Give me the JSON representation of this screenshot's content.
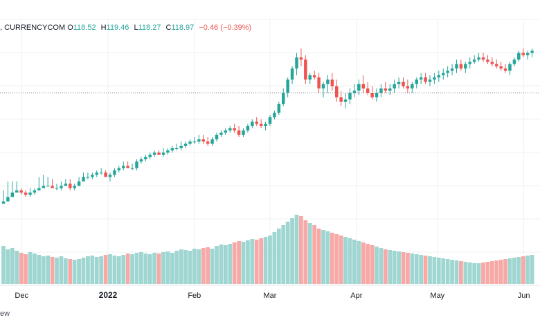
{
  "legend": {
    "symbol": ", CURRENCYCOM",
    "open_label": "O",
    "open": "118.52",
    "high_label": "H",
    "high": "119.46",
    "low_label": "L",
    "low": "118.27",
    "close_label": "C",
    "close": "118.97",
    "change": "−0.46 (−0.39%)"
  },
  "footer": {
    "text": "ew"
  },
  "colors": {
    "up": "#26a69a",
    "down": "#ef5350",
    "up_volume": "#9fd6d1",
    "down_volume": "#f7a9a7",
    "grid": "#eef0f3",
    "axis_text": "#131722",
    "price_line": "#8a8e99"
  },
  "chart_data": {
    "type": "candlestick",
    "x_ticks": [
      "Dec",
      "2022",
      "Feb",
      "Mar",
      "Apr",
      "May",
      "Jun"
    ],
    "y_range": [
      0,
      100
    ],
    "price_line_value": 80,
    "candles": [
      [
        30,
        30,
        36,
        31
      ],
      [
        31,
        31,
        40,
        33
      ],
      [
        33,
        35,
        40,
        35
      ],
      [
        35,
        35,
        40,
        36
      ],
      [
        36,
        34,
        37,
        35
      ],
      [
        35,
        33,
        36,
        34
      ],
      [
        34,
        33,
        37,
        35
      ],
      [
        35,
        34,
        37,
        36
      ],
      [
        36,
        36,
        42,
        37
      ],
      [
        37,
        37,
        43,
        38
      ],
      [
        38,
        38,
        42,
        38
      ],
      [
        38,
        38,
        41,
        37
      ],
      [
        37,
        36,
        39,
        37
      ],
      [
        37,
        36,
        40,
        38
      ],
      [
        38,
        38,
        41,
        39
      ],
      [
        39,
        36,
        41,
        37
      ],
      [
        37,
        36,
        39,
        38
      ],
      [
        38,
        38,
        42,
        40
      ],
      [
        40,
        40,
        44,
        42
      ],
      [
        42,
        41,
        44,
        42
      ],
      [
        42,
        41,
        44,
        43
      ],
      [
        43,
        42,
        45,
        44
      ],
      [
        44,
        43,
        46,
        44
      ],
      [
        44,
        43,
        45,
        42
      ],
      [
        42,
        40,
        44,
        43
      ],
      [
        43,
        42,
        46,
        45
      ],
      [
        45,
        44,
        47,
        46
      ],
      [
        46,
        45,
        49,
        47
      ],
      [
        47,
        46,
        49,
        46
      ],
      [
        46,
        45,
        48,
        46
      ],
      [
        46,
        45,
        50,
        49
      ],
      [
        49,
        48,
        51,
        50
      ],
      [
        50,
        49,
        52,
        51
      ],
      [
        51,
        50,
        53,
        52
      ],
      [
        52,
        51,
        54,
        53
      ],
      [
        53,
        52,
        54,
        52
      ],
      [
        52,
        51,
        55,
        53
      ],
      [
        53,
        52,
        55,
        54
      ],
      [
        54,
        53,
        56,
        55
      ],
      [
        55,
        54,
        57,
        55
      ],
      [
        55,
        54,
        58,
        56
      ],
      [
        56,
        55,
        58,
        57
      ],
      [
        57,
        56,
        59,
        58
      ],
      [
        58,
        57,
        60,
        58
      ],
      [
        58,
        57,
        61,
        59
      ],
      [
        59,
        57,
        61,
        58
      ],
      [
        58,
        56,
        60,
        57
      ],
      [
        57,
        56,
        60,
        59
      ],
      [
        59,
        58,
        62,
        61
      ],
      [
        61,
        60,
        63,
        62
      ],
      [
        62,
        61,
        64,
        63
      ],
      [
        63,
        62,
        65,
        64
      ],
      [
        64,
        62,
        66,
        63
      ],
      [
        63,
        60,
        65,
        61
      ],
      [
        61,
        60,
        64,
        63
      ],
      [
        63,
        62,
        66,
        65
      ],
      [
        65,
        64,
        68,
        67
      ],
      [
        67,
        65,
        69,
        66
      ],
      [
        66,
        64,
        68,
        65
      ],
      [
        65,
        63,
        67,
        66
      ],
      [
        66,
        65,
        70,
        69
      ],
      [
        69,
        68,
        72,
        71
      ],
      [
        71,
        70,
        76,
        75
      ],
      [
        75,
        74,
        82,
        80
      ],
      [
        80,
        78,
        87,
        86
      ],
      [
        86,
        84,
        92,
        91
      ],
      [
        91,
        88,
        98,
        96
      ],
      [
        96,
        92,
        100,
        95
      ],
      [
        95,
        84,
        97,
        86
      ],
      [
        86,
        84,
        89,
        88
      ],
      [
        88,
        86,
        90,
        87
      ],
      [
        87,
        80,
        89,
        82
      ],
      [
        82,
        78,
        85,
        84
      ],
      [
        84,
        80,
        88,
        86
      ],
      [
        86,
        81,
        89,
        83
      ],
      [
        83,
        76,
        86,
        78
      ],
      [
        78,
        74,
        81,
        76
      ],
      [
        76,
        73,
        80,
        77
      ],
      [
        77,
        75,
        82,
        80
      ],
      [
        80,
        78,
        84,
        81
      ],
      [
        81,
        79,
        86,
        84
      ],
      [
        84,
        80,
        88,
        82
      ],
      [
        82,
        79,
        85,
        80
      ],
      [
        80,
        77,
        83,
        78
      ],
      [
        78,
        76,
        82,
        80
      ],
      [
        80,
        78,
        84,
        82
      ],
      [
        82,
        80,
        85,
        81
      ],
      [
        81,
        79,
        84,
        82
      ],
      [
        82,
        80,
        86,
        84
      ],
      [
        84,
        82,
        87,
        85
      ],
      [
        85,
        82,
        87,
        83
      ],
      [
        83,
        80,
        86,
        82
      ],
      [
        82,
        80,
        85,
        84
      ],
      [
        84,
        82,
        87,
        86
      ],
      [
        86,
        84,
        89,
        87
      ],
      [
        87,
        84,
        89,
        85
      ],
      [
        85,
        83,
        88,
        86
      ],
      [
        86,
        84,
        89,
        87
      ],
      [
        87,
        85,
        90,
        88
      ],
      [
        88,
        86,
        91,
        89
      ],
      [
        89,
        87,
        92,
        90
      ],
      [
        90,
        88,
        93,
        91
      ],
      [
        91,
        89,
        95,
        93
      ],
      [
        93,
        90,
        95,
        91
      ],
      [
        91,
        89,
        94,
        93
      ],
      [
        93,
        91,
        96,
        94
      ],
      [
        94,
        93,
        97,
        95
      ],
      [
        95,
        94,
        98,
        96
      ],
      [
        96,
        94,
        98,
        95
      ],
      [
        95,
        93,
        97,
        94
      ],
      [
        94,
        92,
        96,
        93
      ],
      [
        93,
        91,
        95,
        92
      ],
      [
        92,
        90,
        94,
        91
      ],
      [
        91,
        89,
        93,
        90
      ],
      [
        90,
        88,
        94,
        93
      ],
      [
        93,
        92,
        96,
        95
      ],
      [
        95,
        94,
        99,
        98
      ],
      [
        98,
        96,
        100,
        97
      ],
      [
        97,
        95,
        99,
        98
      ],
      [
        98,
        96,
        100,
        99
      ]
    ],
    "volumes": [
      55,
      50,
      52,
      48,
      45,
      43,
      46,
      44,
      42,
      40,
      41,
      39,
      38,
      40,
      37,
      36,
      35,
      36,
      38,
      40,
      41,
      39,
      40,
      42,
      43,
      41,
      40,
      42,
      44,
      43,
      45,
      46,
      44,
      43,
      45,
      44,
      46,
      47,
      45,
      48,
      50,
      49,
      48,
      51,
      50,
      52,
      53,
      51,
      55,
      57,
      56,
      58,
      60,
      62,
      61,
      63,
      65,
      64,
      66,
      68,
      70,
      75,
      80,
      85,
      90,
      95,
      100,
      98,
      92,
      88,
      85,
      80,
      78,
      76,
      74,
      72,
      70,
      68,
      66,
      64,
      62,
      60,
      58,
      56,
      54,
      52,
      50,
      49,
      48,
      47,
      46,
      45,
      44,
      43,
      42,
      41,
      40,
      39,
      38,
      37,
      36,
      35,
      34,
      33,
      32,
      31,
      30,
      30,
      31,
      32,
      33,
      34,
      35,
      36,
      37,
      38,
      39,
      40,
      41,
      42
    ]
  }
}
